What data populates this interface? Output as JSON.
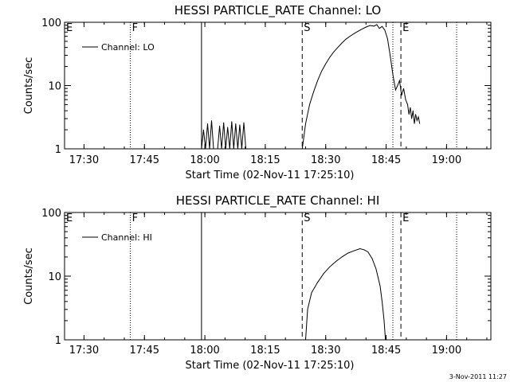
{
  "chart_data": [
    {
      "type": "line",
      "title": "HESSI PARTICLE_RATE Channel: LO",
      "xlabel": "Start Time (02-Nov-11 17:25:10)",
      "ylabel": "Counts/sec",
      "yscale": "log",
      "ylim": [
        1,
        100
      ],
      "xlim": [
        "17:25:10",
        "19:11:00"
      ],
      "x_ticks": [
        "17:30",
        "17:45",
        "18:00",
        "18:15",
        "18:30",
        "18:45",
        "19:00"
      ],
      "y_ticks": [
        "1",
        "10",
        "100"
      ],
      "legend": {
        "entries": [
          "Channel: LO"
        ],
        "placement": "upper-left"
      },
      "markers": [
        {
          "label": "E",
          "time": "17:25:10",
          "style": "solid"
        },
        {
          "label": "F",
          "time": "17:41:30",
          "style": "dotted"
        },
        {
          "label": "",
          "time": "17:59:10",
          "style": "solid"
        },
        {
          "label": "S",
          "time": "18:24:10",
          "style": "dashed"
        },
        {
          "label": "",
          "time": "18:46:40",
          "style": "dotted"
        },
        {
          "label": "E",
          "time": "18:48:40",
          "style": "dashed"
        },
        {
          "label": "",
          "time": "19:02:30",
          "style": "dotted"
        }
      ],
      "series": [
        {
          "name": "Channel: LO",
          "segments": [
            [
              [
                "17:59:10",
                1
              ],
              [
                "17:59:40",
                2.0
              ],
              [
                "18:00:10",
                1
              ],
              [
                "18:00:40",
                2.5
              ],
              [
                "18:01:10",
                1
              ],
              [
                "18:01:40",
                2.8
              ],
              [
                "18:02:10",
                1
              ],
              [
                "18:03:10",
                1
              ],
              [
                "18:03:40",
                2.3
              ],
              [
                "18:04:10",
                1
              ],
              [
                "18:04:40",
                2.6
              ],
              [
                "18:05:10",
                1
              ],
              [
                "18:05:40",
                2.2
              ],
              [
                "18:06:10",
                1
              ],
              [
                "18:06:40",
                2.7
              ],
              [
                "18:07:10",
                1
              ],
              [
                "18:07:40",
                2.5
              ],
              [
                "18:08:10",
                1
              ],
              [
                "18:08:40",
                2.4
              ],
              [
                "18:09:10",
                1
              ],
              [
                "18:09:40",
                2.6
              ],
              [
                "18:10:10",
                1
              ]
            ],
            [
              [
                "18:24:10",
                1
              ],
              [
                "18:25:00",
                2.5
              ],
              [
                "18:26:00",
                5
              ],
              [
                "18:27:00",
                8
              ],
              [
                "18:28:00",
                12
              ],
              [
                "18:29:00",
                17
              ],
              [
                "18:30:00",
                22
              ],
              [
                "18:31:00",
                28
              ],
              [
                "18:32:00",
                34
              ],
              [
                "18:33:00",
                40
              ],
              [
                "18:34:00",
                47
              ],
              [
                "18:35:00",
                54
              ],
              [
                "18:36:00",
                60
              ],
              [
                "18:37:00",
                66
              ],
              [
                "18:38:00",
                72
              ],
              [
                "18:39:00",
                78
              ],
              [
                "18:40:00",
                84
              ],
              [
                "18:41:00",
                89
              ],
              [
                "18:42:00",
                87
              ],
              [
                "18:42:40",
                92
              ],
              [
                "18:43:20",
                80
              ],
              [
                "18:44:00",
                86
              ],
              [
                "18:44:40",
                75
              ],
              [
                "18:45:20",
                55
              ],
              [
                "18:46:00",
                30
              ],
              [
                "18:46:40",
                15
              ],
              [
                "18:47:20",
                8.5
              ],
              [
                "18:47:50",
                10
              ],
              [
                "18:48:20",
                12
              ],
              [
                "18:48:50",
                7
              ],
              [
                "18:49:20",
                9
              ],
              [
                "18:49:50",
                6
              ],
              [
                "18:50:20",
                5
              ],
              [
                "18:50:40",
                3.5
              ],
              [
                "18:51:00",
                4.5
              ],
              [
                "18:51:20",
                3
              ],
              [
                "18:51:40",
                4
              ],
              [
                "18:52:00",
                2.5
              ],
              [
                "18:52:20",
                3.5
              ],
              [
                "18:52:40",
                2.8
              ],
              [
                "18:53:00",
                3.2
              ],
              [
                "18:53:20",
                2.5
              ]
            ]
          ]
        }
      ]
    },
    {
      "type": "line",
      "title": "HESSI PARTICLE_RATE Channel: HI",
      "xlabel": "Start Time (02-Nov-11 17:25:10)",
      "ylabel": "Counts/sec",
      "yscale": "log",
      "ylim": [
        1,
        100
      ],
      "xlim": [
        "17:25:10",
        "19:11:00"
      ],
      "x_ticks": [
        "17:30",
        "17:45",
        "18:00",
        "18:15",
        "18:30",
        "18:45",
        "19:00"
      ],
      "y_ticks": [
        "1",
        "10",
        "100"
      ],
      "legend": {
        "entries": [
          "Channel: HI"
        ],
        "placement": "upper-left"
      },
      "markers": [
        {
          "label": "E",
          "time": "17:25:10",
          "style": "solid"
        },
        {
          "label": "F",
          "time": "17:41:30",
          "style": "dotted"
        },
        {
          "label": "",
          "time": "17:59:10",
          "style": "solid"
        },
        {
          "label": "S",
          "time": "18:24:10",
          "style": "dashed"
        },
        {
          "label": "",
          "time": "18:46:40",
          "style": "dotted"
        },
        {
          "label": "E",
          "time": "18:48:40",
          "style": "dashed"
        },
        {
          "label": "",
          "time": "19:02:30",
          "style": "dotted"
        }
      ],
      "series": [
        {
          "name": "Channel: HI",
          "segments": [
            [
              [
                "18:25:00",
                1
              ],
              [
                "18:25:30",
                3
              ],
              [
                "18:26:30",
                5.5
              ],
              [
                "18:28:00",
                8
              ],
              [
                "18:29:30",
                11
              ],
              [
                "18:31:00",
                14
              ],
              [
                "18:32:30",
                17
              ],
              [
                "18:34:00",
                20
              ],
              [
                "18:35:30",
                23
              ],
              [
                "18:37:00",
                25
              ],
              [
                "18:38:30",
                27
              ],
              [
                "18:39:30",
                26
              ],
              [
                "18:40:30",
                24
              ],
              [
                "18:41:30",
                19
              ],
              [
                "18:42:30",
                13
              ],
              [
                "18:43:30",
                7
              ],
              [
                "18:44:00",
                4
              ],
              [
                "18:44:30",
                2
              ],
              [
                "18:44:50",
                1
              ]
            ]
          ]
        }
      ]
    }
  ],
  "footer": {
    "timestamp": "3-Nov-2011 11:27"
  }
}
